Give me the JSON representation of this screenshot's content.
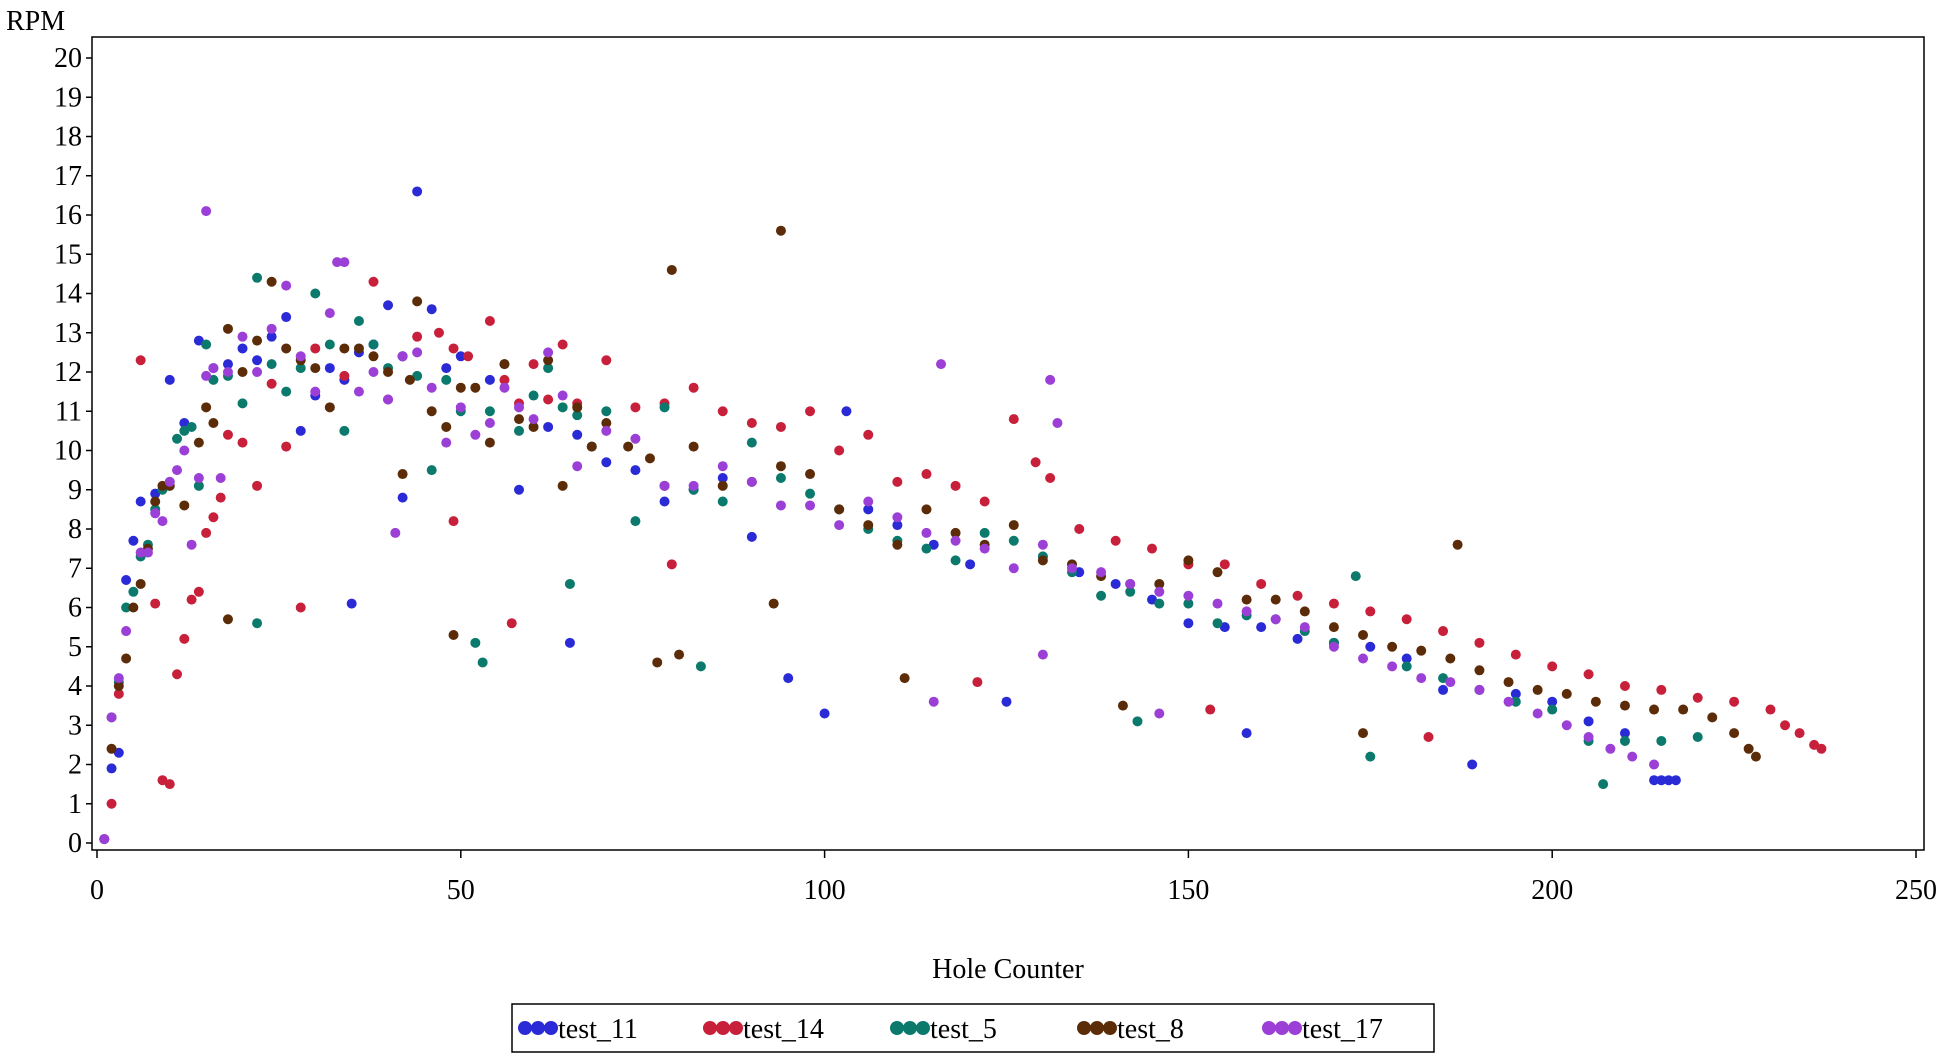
{
  "chart_data": {
    "type": "scatter",
    "title": "",
    "xlabel": "Hole Counter",
    "ylabel": "RPM",
    "xlim": [
      0,
      250
    ],
    "ylim": [
      0,
      20
    ],
    "x_ticks": [
      0,
      50,
      100,
      150,
      200,
      250
    ],
    "x_tick_labels": [
      "0",
      "50",
      "100",
      "150",
      "200",
      "250"
    ],
    "y_ticks": [
      0,
      1,
      2,
      3,
      4,
      5,
      6,
      7,
      8,
      9,
      10,
      11,
      12,
      13,
      14,
      15,
      16,
      17,
      18,
      19,
      20
    ],
    "y_tick_labels": [
      "0",
      "1",
      "2",
      "3",
      "4",
      "5",
      "6",
      "7",
      "8",
      "9",
      "10",
      "11",
      "12",
      "13",
      "14",
      "15",
      "16",
      "17",
      "18",
      "19",
      "20"
    ],
    "grid": false,
    "legend_position": "bottom",
    "series": [
      {
        "name": "test_11",
        "color": "#2a2ad6",
        "x": [
          1,
          2,
          3,
          4,
          5,
          6,
          8,
          10,
          12,
          14,
          16,
          18,
          20,
          22,
          24,
          26,
          28,
          30,
          32,
          34,
          36,
          38,
          40,
          42,
          44,
          46,
          48,
          50,
          54,
          58,
          62,
          66,
          70,
          74,
          78,
          82,
          86,
          90,
          95,
          100,
          103,
          106,
          110,
          115,
          120,
          125,
          130,
          135,
          140,
          145,
          150,
          155,
          158,
          160,
          165,
          170,
          175,
          180,
          185,
          189,
          195,
          200,
          205,
          210,
          214,
          215,
          216,
          217,
          42,
          35,
          65
        ],
        "y": [
          0.1,
          1.9,
          2.3,
          6.7,
          7.7,
          8.7,
          8.9,
          11.8,
          10.7,
          12.8,
          12.1,
          12.2,
          12.6,
          12.3,
          12.9,
          13.4,
          10.5,
          11.4,
          12.1,
          11.8,
          12.5,
          12.7,
          13.7,
          12.4,
          16.6,
          13.6,
          12.1,
          12.4,
          11.8,
          9.0,
          10.6,
          10.4,
          9.7,
          9.5,
          8.7,
          9.0,
          9.3,
          7.8,
          4.2,
          3.3,
          11.0,
          8.5,
          8.1,
          7.6,
          7.1,
          3.6,
          7.3,
          6.9,
          6.6,
          6.2,
          5.6,
          5.5,
          2.8,
          5.5,
          5.2,
          5.1,
          5.0,
          4.7,
          3.9,
          2.0,
          3.8,
          3.6,
          3.1,
          2.8,
          1.6,
          1.6,
          1.6,
          1.6,
          8.8,
          6.1,
          5.1
        ]
      },
      {
        "name": "test_14",
        "color": "#c8203a",
        "x": [
          2,
          3,
          6,
          8,
          9,
          10,
          11,
          12,
          13,
          14,
          15,
          16,
          17,
          18,
          20,
          22,
          24,
          26,
          28,
          30,
          34,
          38,
          40,
          44,
          47,
          49,
          51,
          54,
          56,
          58,
          60,
          62,
          64,
          66,
          70,
          74,
          78,
          82,
          86,
          90,
          94,
          98,
          102,
          106,
          110,
          114,
          118,
          122,
          126,
          129,
          131,
          135,
          140,
          145,
          150,
          155,
          160,
          165,
          170,
          175,
          180,
          185,
          190,
          195,
          200,
          205,
          210,
          215,
          220,
          225,
          230,
          232,
          234,
          236,
          237,
          49,
          57,
          79,
          121,
          153,
          183
        ],
        "y": [
          1.0,
          3.8,
          12.3,
          6.1,
          1.6,
          1.5,
          4.3,
          5.2,
          6.2,
          6.4,
          7.9,
          8.3,
          8.8,
          10.4,
          10.2,
          9.1,
          11.7,
          10.1,
          6.0,
          12.6,
          11.9,
          14.3,
          11.3,
          12.9,
          13.0,
          12.6,
          12.4,
          13.3,
          11.8,
          11.2,
          12.2,
          11.3,
          12.7,
          11.2,
          12.3,
          11.1,
          11.2,
          11.6,
          11.0,
          10.7,
          10.6,
          11.0,
          10.0,
          10.4,
          9.2,
          9.4,
          9.1,
          8.7,
          10.8,
          9.7,
          9.3,
          8.0,
          7.7,
          7.5,
          7.1,
          7.1,
          6.6,
          6.3,
          6.1,
          5.9,
          5.7,
          5.4,
          5.1,
          4.8,
          4.5,
          4.3,
          4.0,
          3.9,
          3.7,
          3.6,
          3.4,
          3.0,
          2.8,
          2.5,
          2.4,
          8.2,
          5.6,
          7.1,
          4.1,
          3.4,
          2.7
        ]
      },
      {
        "name": "test_5",
        "color": "#0b7a6c",
        "x": [
          2,
          3,
          4,
          5,
          6,
          7,
          8,
          9,
          10,
          11,
          12,
          13,
          14,
          15,
          16,
          18,
          20,
          22,
          24,
          26,
          28,
          30,
          32,
          34,
          36,
          38,
          40,
          42,
          44,
          46,
          48,
          50,
          52,
          54,
          56,
          58,
          60,
          62,
          64,
          66,
          68,
          70,
          74,
          78,
          82,
          86,
          90,
          94,
          98,
          102,
          106,
          110,
          114,
          118,
          122,
          126,
          130,
          134,
          138,
          142,
          146,
          150,
          154,
          158,
          162,
          166,
          170,
          173,
          175,
          180,
          185,
          190,
          195,
          200,
          205,
          207,
          210,
          215,
          220,
          22,
          53,
          65,
          83,
          143
        ],
        "y": [
          3.2,
          4.1,
          6.0,
          6.4,
          7.3,
          7.6,
          8.5,
          9.0,
          9.2,
          10.3,
          10.5,
          10.6,
          9.1,
          12.7,
          11.8,
          11.9,
          11.2,
          14.4,
          12.2,
          11.5,
          12.1,
          14.0,
          12.7,
          10.5,
          13.3,
          12.7,
          12.1,
          12.4,
          11.9,
          9.5,
          11.8,
          11.0,
          5.1,
          11.0,
          12.2,
          10.5,
          11.4,
          12.1,
          11.1,
          10.9,
          10.1,
          11.0,
          8.2,
          11.1,
          9.0,
          8.7,
          10.2,
          9.3,
          8.9,
          8.5,
          8.0,
          7.7,
          7.5,
          7.2,
          7.9,
          7.7,
          7.3,
          6.9,
          6.3,
          6.4,
          6.1,
          6.1,
          5.6,
          5.8,
          5.7,
          5.4,
          5.1,
          6.8,
          2.2,
          4.5,
          4.2,
          3.9,
          3.6,
          3.4,
          2.6,
          1.5,
          2.6,
          2.6,
          2.7,
          5.6,
          4.6,
          6.6,
          4.5,
          3.1
        ]
      },
      {
        "name": "test_8",
        "color": "#5c2c08",
        "x": [
          1,
          2,
          3,
          4,
          5,
          6,
          7,
          8,
          9,
          10,
          12,
          14,
          15,
          16,
          18,
          20,
          22,
          24,
          26,
          28,
          30,
          32,
          34,
          36,
          38,
          40,
          42,
          44,
          46,
          48,
          50,
          52,
          54,
          56,
          58,
          60,
          62,
          64,
          66,
          68,
          70,
          73,
          76,
          78,
          82,
          86,
          90,
          94,
          98,
          102,
          106,
          110,
          114,
          118,
          122,
          126,
          130,
          134,
          138,
          142,
          146,
          150,
          154,
          158,
          162,
          166,
          170,
          174,
          178,
          182,
          186,
          190,
          194,
          198,
          202,
          206,
          210,
          214,
          218,
          222,
          225,
          227,
          228,
          18,
          43,
          49,
          77,
          80,
          93,
          111,
          141,
          174,
          187,
          79,
          94
        ],
        "y": [
          0.1,
          2.4,
          4.0,
          4.7,
          6.0,
          6.6,
          7.5,
          8.7,
          9.1,
          9.1,
          8.6,
          10.2,
          11.1,
          10.7,
          13.1,
          12.0,
          12.8,
          14.3,
          12.6,
          12.3,
          12.1,
          11.1,
          12.6,
          12.6,
          12.4,
          12.0,
          9.4,
          13.8,
          11.0,
          10.6,
          11.6,
          11.6,
          10.2,
          12.2,
          10.8,
          10.6,
          12.3,
          9.1,
          11.1,
          10.1,
          10.7,
          10.1,
          9.8,
          9.1,
          10.1,
          9.1,
          9.2,
          9.6,
          9.4,
          8.5,
          8.1,
          7.6,
          8.5,
          7.9,
          7.6,
          8.1,
          7.2,
          7.1,
          6.8,
          6.6,
          6.6,
          7.2,
          6.9,
          6.2,
          6.2,
          5.9,
          5.5,
          5.3,
          5.0,
          4.9,
          4.7,
          4.4,
          4.1,
          3.9,
          3.8,
          3.6,
          3.5,
          3.4,
          3.4,
          3.2,
          2.8,
          2.4,
          2.2,
          5.7,
          11.8,
          5.3,
          4.6,
          4.8,
          6.1,
          4.2,
          3.5,
          2.8,
          7.6,
          14.6,
          15.6
        ]
      },
      {
        "name": "test_17",
        "color": "#9b3fd6",
        "x": [
          1,
          2,
          3,
          4,
          6,
          7,
          8,
          9,
          10,
          11,
          12,
          13,
          14,
          15,
          16,
          17,
          18,
          20,
          22,
          24,
          26,
          28,
          30,
          32,
          34,
          36,
          38,
          40,
          42,
          44,
          46,
          48,
          50,
          52,
          54,
          56,
          58,
          60,
          62,
          64,
          66,
          70,
          74,
          78,
          82,
          86,
          90,
          94,
          98,
          102,
          106,
          110,
          114,
          118,
          122,
          126,
          130,
          134,
          138,
          142,
          146,
          150,
          154,
          158,
          162,
          166,
          170,
          174,
          178,
          182,
          186,
          190,
          194,
          198,
          202,
          205,
          208,
          211,
          214,
          116,
          131,
          132,
          15,
          33,
          41,
          115,
          130,
          146
        ],
        "y": [
          0.1,
          3.2,
          4.2,
          5.4,
          7.4,
          7.4,
          8.4,
          8.2,
          9.2,
          9.5,
          10.0,
          7.6,
          9.3,
          16.1,
          12.1,
          9.3,
          12.0,
          12.9,
          12.0,
          13.1,
          14.2,
          12.4,
          11.5,
          13.5,
          14.8,
          11.5,
          12.0,
          11.3,
          12.4,
          12.5,
          11.6,
          10.2,
          11.1,
          10.4,
          10.7,
          11.6,
          11.1,
          10.8,
          12.5,
          11.4,
          9.6,
          10.5,
          10.3,
          9.1,
          9.1,
          9.6,
          9.2,
          8.6,
          8.6,
          8.1,
          8.7,
          8.3,
          7.9,
          7.7,
          7.5,
          7.0,
          7.6,
          7.0,
          6.9,
          6.6,
          6.4,
          6.3,
          6.1,
          5.9,
          5.7,
          5.5,
          5.0,
          4.7,
          4.5,
          4.2,
          4.1,
          3.9,
          3.6,
          3.3,
          3.0,
          2.7,
          2.4,
          2.2,
          2.0,
          12.2,
          11.8,
          10.7,
          11.9,
          14.8,
          7.9,
          3.6,
          4.8,
          3.3
        ]
      }
    ]
  }
}
